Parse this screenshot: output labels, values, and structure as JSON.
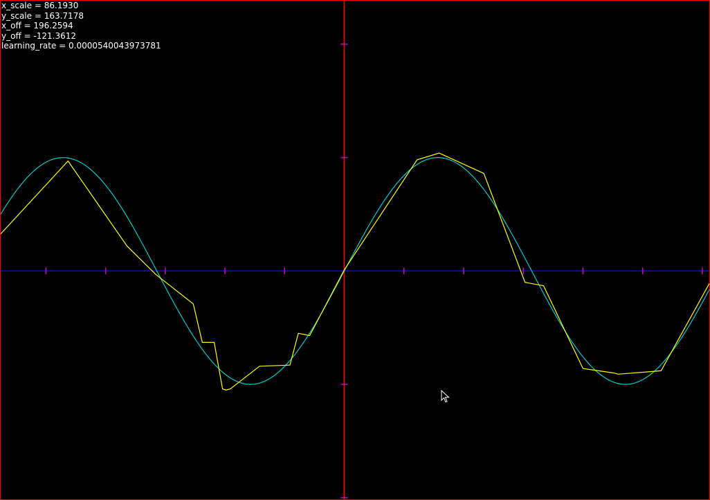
{
  "hud": {
    "x_scale": "x_scale = 86.1930",
    "y_scale": "y_scale = 163.7178",
    "x_off": "x_off = 196.2594",
    "y_off": "y_off = -121.3612",
    "learning_rate": "learning_rate = 0.0000540043973781"
  },
  "colors": {
    "background": "#000000",
    "frame": "#ff0000",
    "x_axis": "#0000ff",
    "y_axis": "#ff0000",
    "ticks": "#cc00cc",
    "target_curve": "#00cccc",
    "approximation": "#ffff00",
    "hud_text": "#ffffff"
  },
  "chart_data": {
    "type": "line",
    "xlim": [
      -5.77,
      6.13
    ],
    "ylim": [
      -2.02,
      2.39
    ],
    "x_ticks": [
      -5,
      -4,
      -3,
      -2,
      -1,
      0,
      1,
      2,
      3,
      4,
      5,
      6
    ],
    "y_ticks": [
      -2,
      -1,
      1,
      2
    ],
    "grid": false,
    "legend": "none",
    "series": [
      {
        "role": "target",
        "function": "sin(x)",
        "color": "#00cccc"
      },
      {
        "role": "approximation",
        "color": "#ffff00",
        "x": [
          -5.77,
          -4.63,
          -3.64,
          -3.16,
          -2.53,
          -2.38,
          -2.18,
          -2.04,
          -1.98,
          -1.91,
          -1.42,
          -0.91,
          -0.77,
          -0.58,
          0.0,
          1.22,
          1.59,
          2.34,
          3.03,
          3.34,
          4.0,
          4.52,
          4.59,
          5.31,
          6.13
        ],
        "y": [
          0.32,
          0.97,
          0.22,
          -0.03,
          -0.29,
          -0.63,
          -0.63,
          -1.04,
          -1.05,
          -1.04,
          -0.84,
          -0.83,
          -0.55,
          -0.57,
          0.01,
          0.98,
          1.04,
          0.86,
          -0.1,
          -0.13,
          -0.86,
          -0.9,
          -0.91,
          -0.88,
          -0.1
        ]
      }
    ]
  }
}
